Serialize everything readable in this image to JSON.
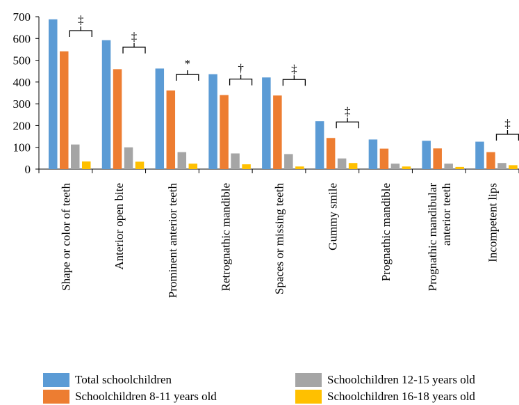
{
  "chart_data": {
    "type": "bar",
    "categories": [
      [
        "Shape or color of teeth"
      ],
      [
        "Anterior open bite"
      ],
      [
        "Prominent anterior teeth"
      ],
      [
        "Retrognathic mandible"
      ],
      [
        "Spaces or missing teeth"
      ],
      [
        "Gummy smile"
      ],
      [
        "Prognathic mandible"
      ],
      [
        "Prognathic mandibular",
        "anterior teeth"
      ],
      [
        "Incompetent lips"
      ]
    ],
    "series": [
      {
        "name": "Total schoolchildren",
        "color": "#5b9bd5",
        "values": [
          688,
          592,
          462,
          436,
          421,
          220,
          136,
          130,
          126
        ]
      },
      {
        "name": "Schoolchildren 8-11 years old",
        "color": "#ed7d31",
        "values": [
          541,
          459,
          361,
          340,
          338,
          143,
          94,
          95,
          78
        ]
      },
      {
        "name": "Schoolchildren 12-15 years old",
        "color": "#a5a5a5",
        "values": [
          113,
          100,
          78,
          72,
          69,
          49,
          25,
          25,
          28
        ]
      },
      {
        "name": "Schoolchildren 16-18 years old",
        "color": "#ffc000",
        "values": [
          35,
          34,
          25,
          22,
          12,
          28,
          12,
          10,
          18
        ]
      }
    ],
    "yticks": [
      0,
      100,
      200,
      300,
      400,
      500,
      600,
      700
    ],
    "ylim": [
      0,
      700
    ],
    "significance": [
      {
        "category": 0,
        "symbol": "‡"
      },
      {
        "category": 1,
        "symbol": "‡"
      },
      {
        "category": 2,
        "symbol": "*"
      },
      {
        "category": 3,
        "symbol": "†"
      },
      {
        "category": 4,
        "symbol": "‡"
      },
      {
        "category": 5,
        "symbol": "‡"
      },
      {
        "category": 8,
        "symbol": "‡"
      }
    ],
    "legend_position": "bottom",
    "grid": false
  },
  "legend": [
    {
      "label": "Total schoolchildren",
      "color": "#5b9bd5"
    },
    {
      "label": "Schoolchildren 12-15 years old",
      "color": "#a5a5a5"
    },
    {
      "label": "Schoolchildren 8-11 years old",
      "color": "#ed7d31"
    },
    {
      "label": "Schoolchildren 16-18 years old",
      "color": "#ffc000"
    }
  ]
}
